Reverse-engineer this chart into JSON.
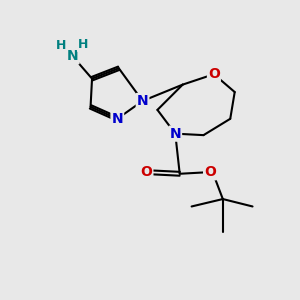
{
  "bg_color": "#e8e8e8",
  "bond_color": "#000000",
  "N_color": "#0000cc",
  "O_color": "#cc0000",
  "NH2_H_color": "#008080",
  "NH2_N_color": "#008080",
  "line_width": 1.5,
  "font_size": 10,
  "fig_size": [
    3.0,
    3.0
  ],
  "dpi": 100,
  "xlim": [
    0,
    10
  ],
  "ylim": [
    0,
    10
  ]
}
